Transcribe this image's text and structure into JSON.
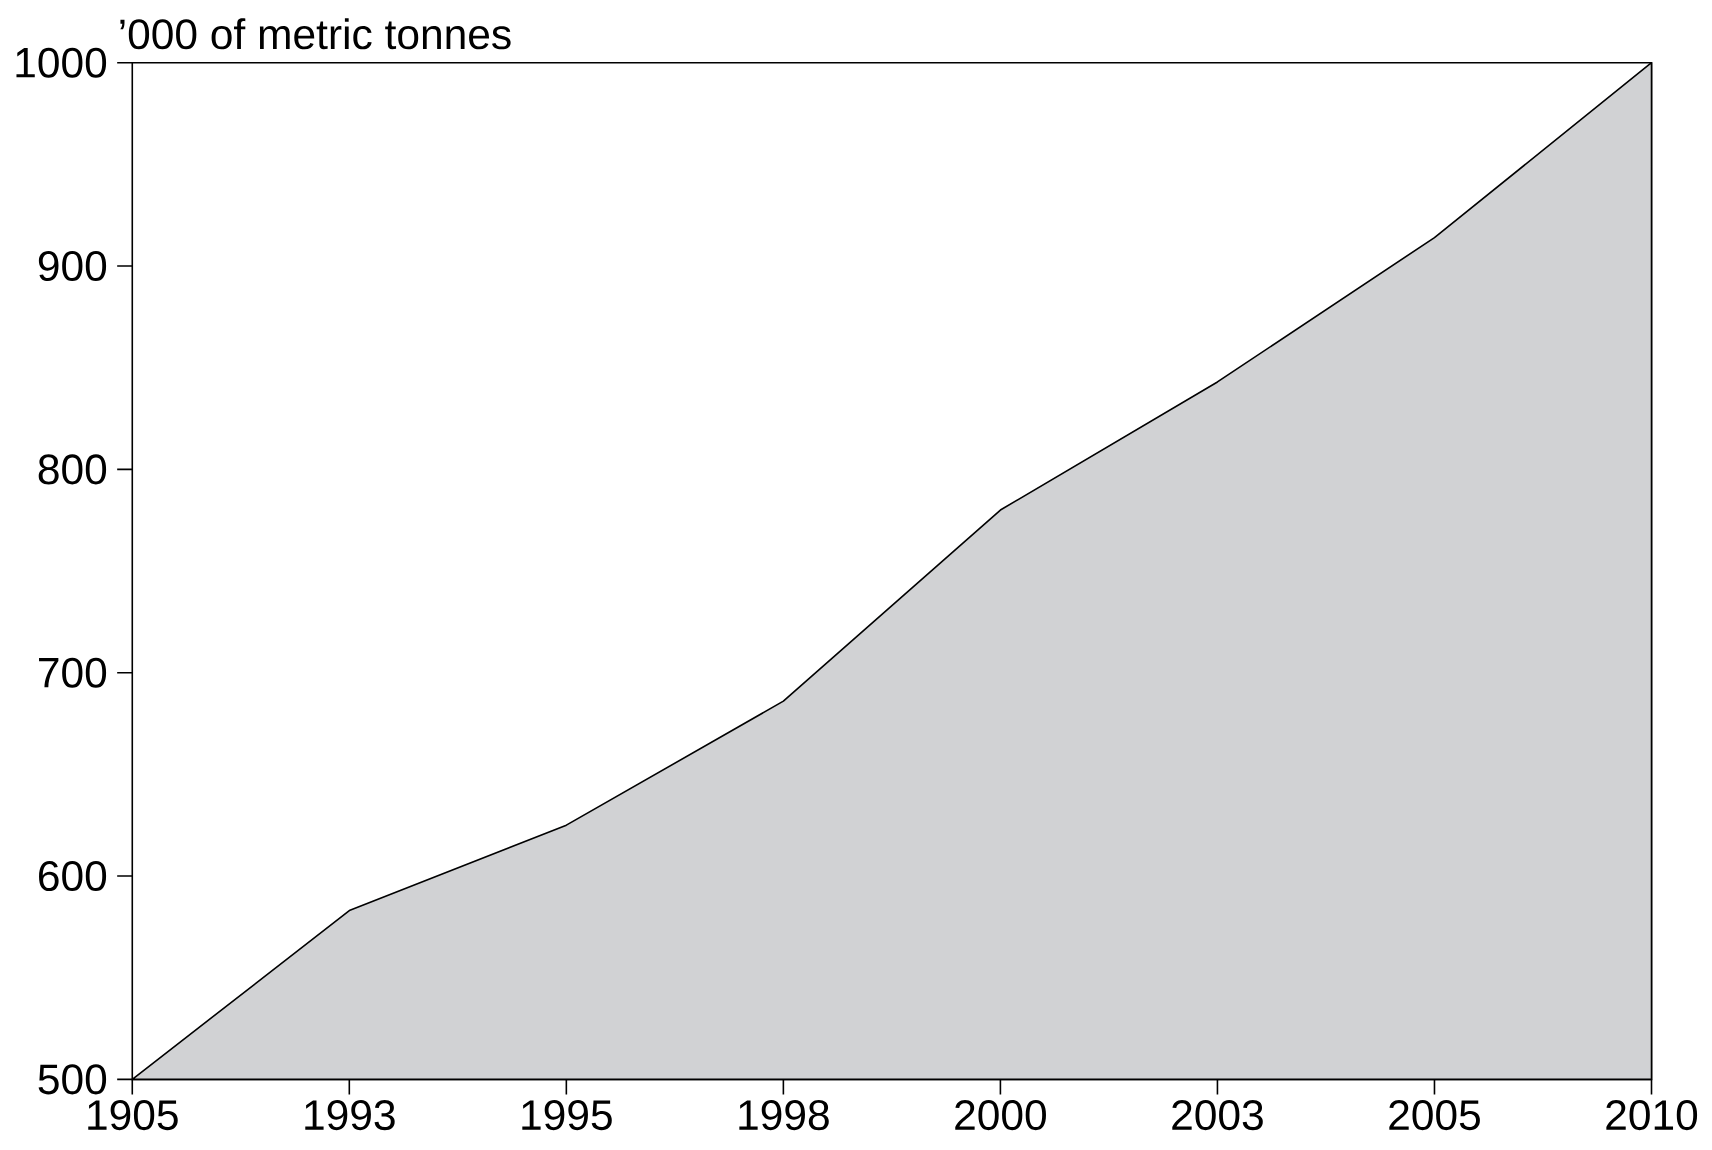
{
  "chart_data": {
    "type": "area",
    "ylabel": "’000 of metric tonnes",
    "categories": [
      "1905",
      "1993",
      "1995",
      "1998",
      "2000",
      "2003",
      "2005",
      "2010"
    ],
    "values": [
      500,
      583,
      625,
      686,
      780,
      843,
      914,
      1000
    ],
    "color": "#d1d2d4",
    "ylim": [
      500,
      1000
    ],
    "yticks": [
      500,
      600,
      700,
      800,
      900,
      1000
    ]
  }
}
